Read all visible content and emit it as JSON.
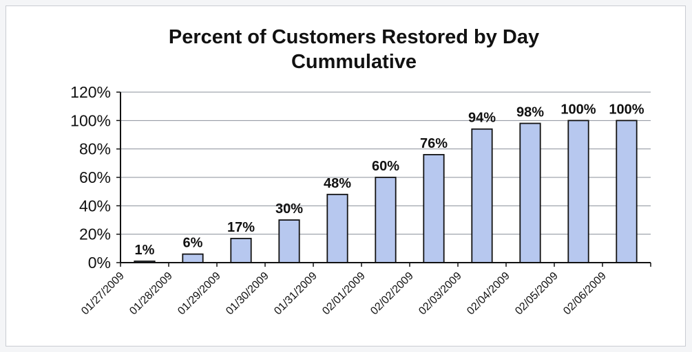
{
  "chart_data": {
    "type": "bar",
    "title": "Percent of Customers Restored by Day",
    "subtitle": "Cummulative",
    "categories": [
      "01/27/2009",
      "01/28/2009",
      "01/29/2009",
      "01/30/2009",
      "01/31/2009",
      "02/01/2009",
      "02/02/2009",
      "02/03/2009",
      "02/04/2009",
      "02/05/2009",
      "02/06/2009"
    ],
    "x_tick_labels": [
      "01/27/2009",
      "01/28/2009",
      "01/29/2009",
      "01/30/2009",
      "01/31/2009",
      "02/01/2009",
      "02/02/2009",
      "02/03/2009",
      "02/04/2009",
      "02/05/2009",
      "02/06/2009"
    ],
    "values": [
      1,
      6,
      17,
      30,
      48,
      60,
      76,
      94,
      98,
      100,
      100
    ],
    "data_labels": [
      "1%",
      "6%",
      "17%",
      "30%",
      "48%",
      "60%",
      "76%",
      "94%",
      "98%",
      "100%",
      "100%"
    ],
    "y_tick_labels": [
      "0%",
      "20%",
      "40%",
      "60%",
      "80%",
      "100%",
      "120%"
    ],
    "ylim": [
      0,
      120
    ],
    "xlabel": "",
    "ylabel": "",
    "grid": true,
    "legend": "none",
    "colors": {
      "bar": "#b7c8ef",
      "bar_edge": "#111111",
      "grid": "#8a8f9a",
      "plot_bg": "#ffffff"
    }
  }
}
